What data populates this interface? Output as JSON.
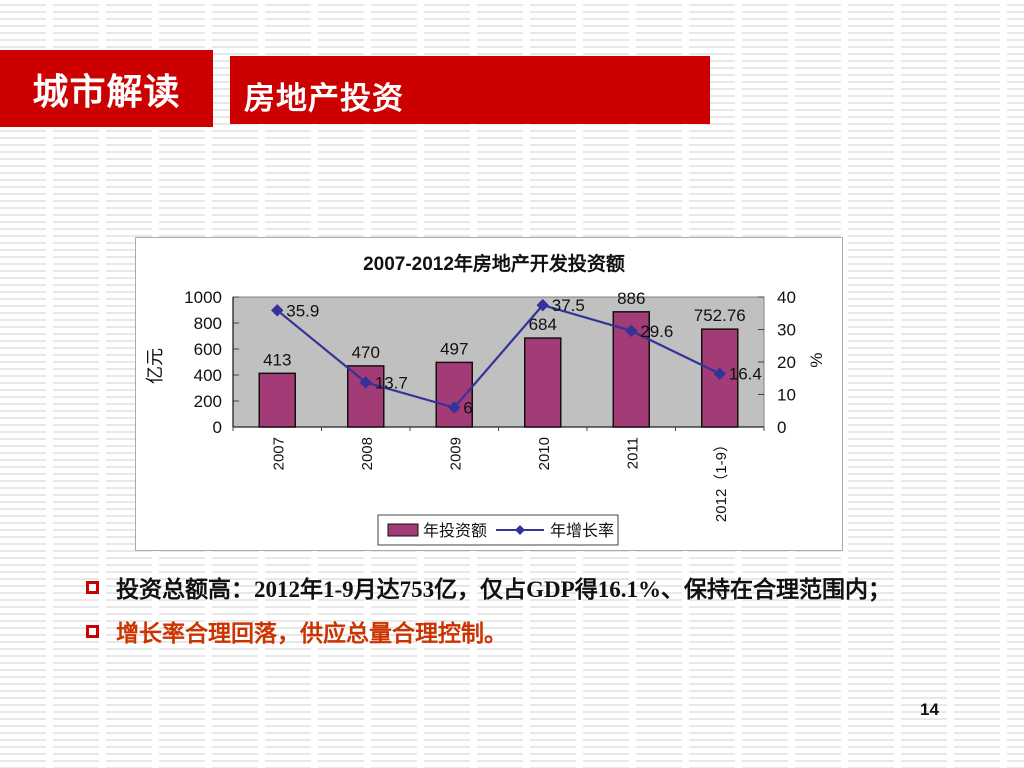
{
  "header": {
    "section_label": "城市解读",
    "title": "房地产投资"
  },
  "chart_data": {
    "type": "bar",
    "title": "2007-2012年房地产开发投资额",
    "categories": [
      "2007",
      "2008",
      "2009",
      "2010",
      "2011",
      "2012（1-9）"
    ],
    "series": [
      {
        "name": "年投资额",
        "type": "bar",
        "axis": "left",
        "values": [
          413,
          470,
          497,
          684,
          886,
          752.76
        ],
        "color": "#a33c76"
      },
      {
        "name": "年增长率",
        "type": "line",
        "axis": "right",
        "values": [
          35.9,
          13.7,
          6,
          37.5,
          29.6,
          16.4
        ],
        "color": "#333399"
      }
    ],
    "left_axis": {
      "label": "亿元",
      "min": 0,
      "max": 1000,
      "ticks": [
        0,
        200,
        400,
        600,
        800,
        1000
      ]
    },
    "right_axis": {
      "label": "%",
      "min": 0,
      "max": 40,
      "ticks": [
        0,
        10,
        20,
        30,
        40
      ]
    },
    "data_labels": {
      "bar": [
        "413",
        "470",
        "497",
        "684",
        "886",
        "752.76"
      ],
      "line": [
        "35.9",
        "13.7",
        "6",
        "37.5",
        "29.6",
        "16.4"
      ]
    },
    "plot_bg": "#c0c0c0",
    "grid": false,
    "legend": {
      "position": "bottom-center-inside",
      "entries": [
        "年投资额",
        "年增长率"
      ]
    }
  },
  "bullets": [
    {
      "text": "投资总额高：2012年1-9月达753亿，仅占GDP得16.1%、保持在合理范围内；",
      "color": "#111111"
    },
    {
      "text": "增长率合理回落，供应总量合理控制。",
      "color": "#cc3300"
    }
  ],
  "page": {
    "number": "14"
  }
}
